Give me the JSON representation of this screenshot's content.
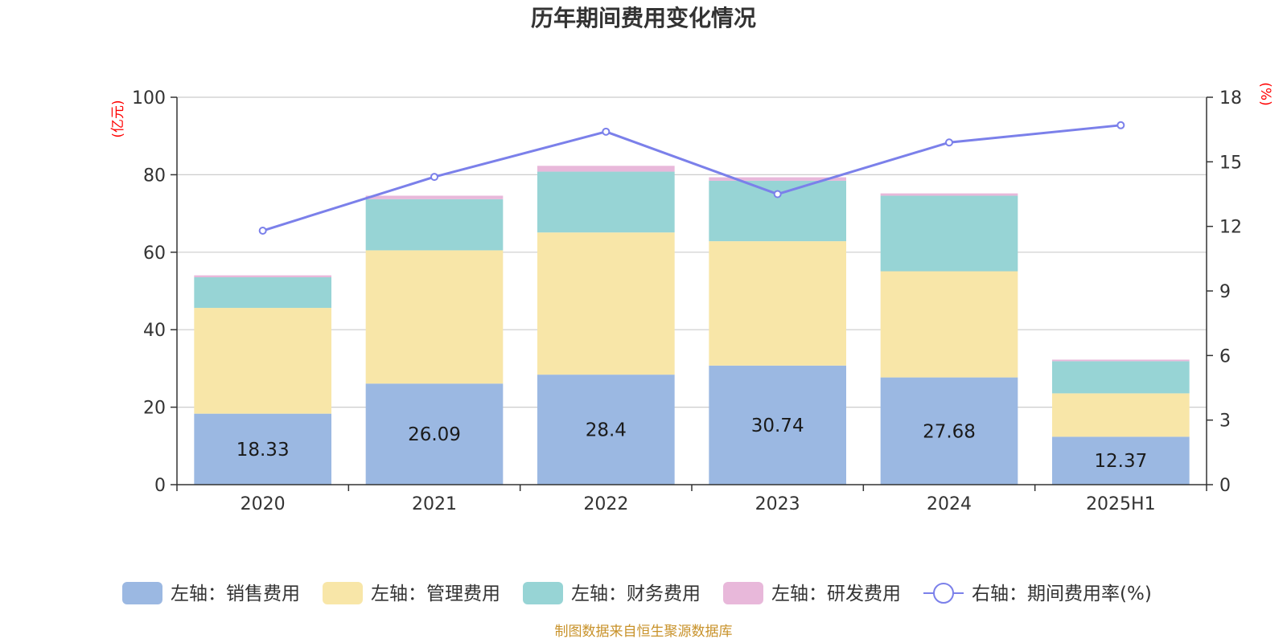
{
  "chart_data": {
    "type": "bar",
    "stacked": true,
    "title": "历年期间费用变化情况",
    "categories": [
      "2020",
      "2021",
      "2022",
      "2023",
      "2024",
      "2025H1"
    ],
    "left_axis": {
      "unit": "(亿元)",
      "ylim": [
        0,
        100
      ],
      "ticks": [
        "0",
        "20",
        "40",
        "60",
        "80",
        "100"
      ]
    },
    "right_axis": {
      "unit": "(%)",
      "ylim": [
        0,
        18
      ],
      "ticks": [
        "0",
        "3",
        "6",
        "9",
        "12",
        "15",
        "18"
      ]
    },
    "series": [
      {
        "name": "左轴：销售费用",
        "color": "#9bb8e2",
        "values": [
          18.33,
          26.09,
          28.4,
          30.74,
          27.68,
          12.37
        ],
        "labels": [
          "18.33",
          "26.09",
          "28.4",
          "30.74",
          "27.68",
          "12.37"
        ]
      },
      {
        "name": "左轴：管理费用",
        "color": "#f8e6a8",
        "values": [
          27.3,
          34.4,
          36.7,
          32.1,
          27.4,
          11.2
        ]
      },
      {
        "name": "左轴：财务费用",
        "color": "#97d4d5",
        "values": [
          7.9,
          13.2,
          15.7,
          15.6,
          19.5,
          8.3
        ]
      },
      {
        "name": "左轴：研发费用",
        "color": "#e8b8da",
        "values": [
          0.5,
          0.9,
          1.5,
          0.9,
          0.6,
          0.4
        ]
      }
    ],
    "line": {
      "name": "右轴：期间费用率(%)",
      "color": "#7b80ea",
      "values": [
        11.8,
        14.3,
        16.4,
        13.5,
        15.9,
        16.7
      ]
    },
    "grid": true,
    "legend_position": "bottom"
  },
  "source_note": "制图数据来自恒生聚源数据库"
}
